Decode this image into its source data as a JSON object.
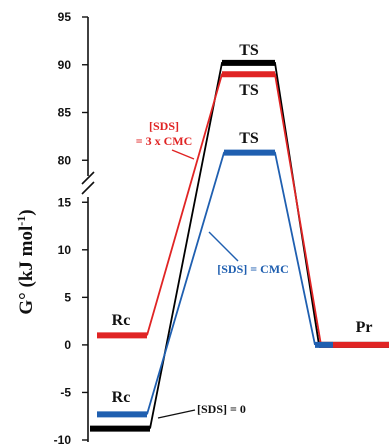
{
  "chart_data": {
    "type": "line",
    "ylabel": {
      "main": "G° (kJ mol",
      "sup": "-1",
      "close": ")"
    },
    "yticks_lower": [
      -10,
      -5,
      0,
      5,
      10,
      15
    ],
    "yticks_upper": [
      80,
      85,
      90,
      95
    ],
    "axis_break": true,
    "series": [
      {
        "name": "[SDS] = 0",
        "color": "#000000",
        "levels": {
          "Rc": -8.8,
          "TS": 90.2,
          "Pr": 0.0
        }
      },
      {
        "name": "[SDS] = 3 x CMC",
        "color": "#e02424",
        "levels": {
          "Rc": 1.0,
          "TS": 89.0,
          "Pr": 0.0
        }
      },
      {
        "name": "[SDS] = CMC",
        "color": "#1f5fb0",
        "levels": {
          "Rc": -7.3,
          "TS": 80.8,
          "Pr": 0.0
        }
      }
    ],
    "labels": {
      "ts_black": "TS",
      "ts_red": "TS",
      "ts_blue": "TS",
      "rc_red": "Rc",
      "rc_blue": "Rc",
      "pr": "Pr"
    },
    "annotations": {
      "red_line1": "[SDS]",
      "red_line2": "= 3 x CMC",
      "blue": "[SDS] = CMC",
      "black": "[SDS] = 0"
    }
  }
}
